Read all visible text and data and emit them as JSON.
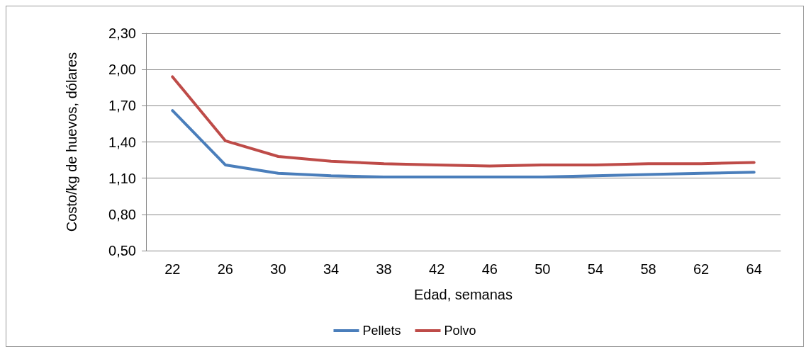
{
  "chart_data": {
    "type": "line",
    "xlabel": "Edad, semanas",
    "ylabel": "Costo/kg de huevos, dólares",
    "categories": [
      "22",
      "26",
      "30",
      "34",
      "38",
      "42",
      "46",
      "50",
      "54",
      "58",
      "62",
      "64"
    ],
    "series": [
      {
        "name": "Pellets",
        "color": "#4a7ebb",
        "values": [
          1.66,
          1.21,
          1.14,
          1.12,
          1.11,
          1.11,
          1.11,
          1.11,
          1.12,
          1.13,
          1.14,
          1.15
        ]
      },
      {
        "name": "Polvo",
        "color": "#be4b48",
        "values": [
          1.94,
          1.41,
          1.28,
          1.24,
          1.22,
          1.21,
          1.2,
          1.21,
          1.21,
          1.22,
          1.22,
          1.23
        ]
      }
    ],
    "ylim": [
      0.5,
      2.3
    ],
    "yticks": [
      {
        "value": 0.5,
        "label": "0,50"
      },
      {
        "value": 0.8,
        "label": "0,80"
      },
      {
        "value": 1.1,
        "label": "1,10"
      },
      {
        "value": 1.4,
        "label": "1,40"
      },
      {
        "value": 1.7,
        "label": "1,70"
      },
      {
        "value": 2.0,
        "label": "2,00"
      },
      {
        "value": 2.3,
        "label": "2,30"
      }
    ],
    "grid": "y",
    "legend": "bottom",
    "marker": "none",
    "line_style": "solid"
  }
}
